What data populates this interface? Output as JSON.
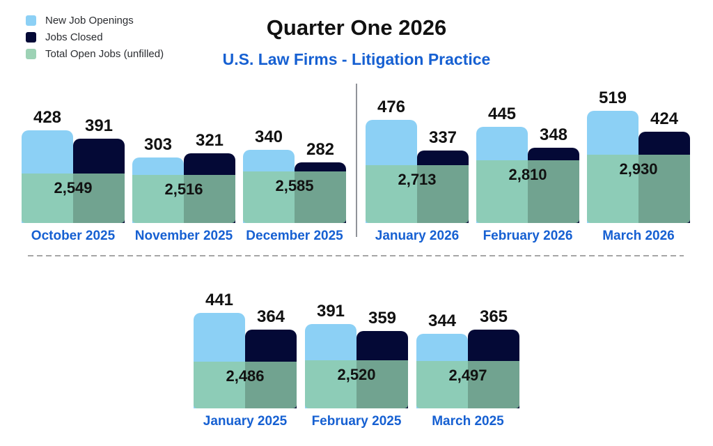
{
  "header": {
    "title": "Quarter One 2026",
    "subtitle": "U.S. Law Firms - Litigation Practice"
  },
  "legend": [
    {
      "label": "New Job Openings",
      "color": "#8CD0F5",
      "icon": "blue-square-swatch"
    },
    {
      "label": "Jobs Closed",
      "color": "#040936",
      "icon": "navy-square-swatch"
    },
    {
      "label": "Total Open Jobs (unfilled)",
      "color": "#9DD2B5",
      "icon": "green-square-swatch"
    }
  ],
  "colors": {
    "bar_new_openings": "#8CD0F5",
    "bar_jobs_closed": "#040936",
    "overlay_total_open": "rgba(141,202,168,0.8)",
    "label_blue": "#1660D2",
    "value_text": "#111111",
    "divider_gray": "#909399",
    "dashed_gray": "#A6A6A6"
  },
  "chart_data": {
    "type": "bar",
    "title": "Quarter One 2026",
    "subtitle": "U.S. Law Firms - Litigation Practice",
    "legend_entries": [
      "New Job Openings",
      "Jobs Closed",
      "Total Open Jobs (unfilled)"
    ],
    "layout_hint": "two rows of grouped bars; translucent green total-open-jobs block overlays the base of each month group; vertical line separates Q4 2025 from Q1 2026; dashed line separates top row from prior-year Q1 2025 row",
    "rows": [
      {
        "id": "q4-2025-and-q1-2026",
        "groups": [
          {
            "month": "October 2025",
            "new_job_openings": 428,
            "jobs_closed": 391,
            "total_open_jobs": 2549,
            "total_open_label": "2,549"
          },
          {
            "month": "November 2025",
            "new_job_openings": 303,
            "jobs_closed": 321,
            "total_open_jobs": 2516,
            "total_open_label": "2,516"
          },
          {
            "month": "December 2025",
            "new_job_openings": 340,
            "jobs_closed": 282,
            "total_open_jobs": 2585,
            "total_open_label": "2,585"
          },
          {
            "month": "January 2026",
            "new_job_openings": 476,
            "jobs_closed": 337,
            "total_open_jobs": 2713,
            "total_open_label": "2,713"
          },
          {
            "month": "February 2026",
            "new_job_openings": 445,
            "jobs_closed": 348,
            "total_open_jobs": 2810,
            "total_open_label": "2,810"
          },
          {
            "month": "March 2026",
            "new_job_openings": 519,
            "jobs_closed": 424,
            "total_open_jobs": 2930,
            "total_open_label": "2,930"
          }
        ]
      },
      {
        "id": "q1-2025-prior-year",
        "groups": [
          {
            "month": "January 2025",
            "new_job_openings": 441,
            "jobs_closed": 364,
            "total_open_jobs": 2486,
            "total_open_label": "2,486"
          },
          {
            "month": "February 2025",
            "new_job_openings": 391,
            "jobs_closed": 359,
            "total_open_jobs": 2520,
            "total_open_label": "2,520"
          },
          {
            "month": "March 2025",
            "new_job_openings": 344,
            "jobs_closed": 365,
            "total_open_jobs": 2497,
            "total_open_label": "2,497"
          }
        ]
      }
    ]
  }
}
